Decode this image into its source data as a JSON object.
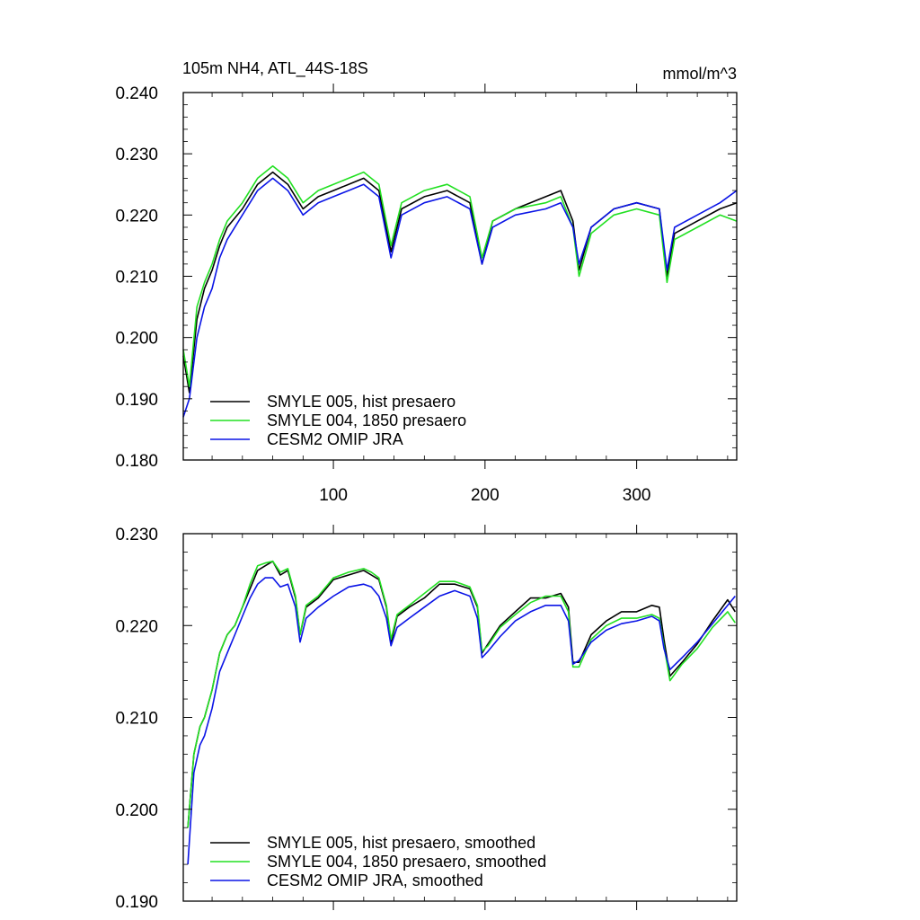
{
  "figure": {
    "title": "105m NH4, ATL_44S-18S",
    "units": "mmol/m^3"
  },
  "colors": {
    "hist": "#000000",
    "pre1850": "#22e022",
    "omip": "#0a14e6"
  },
  "chart_data": [
    {
      "type": "line",
      "name": "raw",
      "title": "105m NH4, ATL_44S-18S",
      "units_label": "mmol/m^3",
      "xlim": [
        1,
        366
      ],
      "ylim": [
        0.18,
        0.24
      ],
      "xticks": [
        100,
        200,
        300
      ],
      "xtick_labels": [
        "100",
        "200",
        "300"
      ],
      "yticks": [
        0.18,
        0.19,
        0.2,
        0.21,
        0.22,
        0.23,
        0.24
      ],
      "ytick_labels": [
        "0.180",
        "0.190",
        "0.200",
        "0.210",
        "0.220",
        "0.230",
        "0.240"
      ],
      "legend": [
        "SMYLE 005, hist presaero",
        "SMYLE 004, 1850 presaero",
        "CESM2 OMIP JRA"
      ],
      "legend_position": "bottom-left",
      "series": [
        {
          "name": "SMYLE 005, hist presaero",
          "color_key": "hist",
          "x": [
            1,
            5,
            10,
            15,
            20,
            25,
            30,
            40,
            50,
            60,
            70,
            80,
            90,
            100,
            110,
            120,
            130,
            138,
            145,
            160,
            175,
            190,
            198,
            205,
            220,
            240,
            250,
            258,
            262,
            270,
            285,
            300,
            315,
            320,
            325,
            340,
            355,
            366
          ],
          "y": [
            0.197,
            0.191,
            0.203,
            0.208,
            0.211,
            0.215,
            0.218,
            0.221,
            0.225,
            0.227,
            0.225,
            0.221,
            0.223,
            0.224,
            0.225,
            0.226,
            0.224,
            0.214,
            0.221,
            0.223,
            0.224,
            0.222,
            0.212,
            0.219,
            0.221,
            0.223,
            0.224,
            0.219,
            0.211,
            0.218,
            0.221,
            0.222,
            0.221,
            0.21,
            0.217,
            0.219,
            0.221,
            0.222
          ]
        },
        {
          "name": "SMYLE 004, 1850 presaero",
          "color_key": "pre1850",
          "x": [
            1,
            5,
            10,
            15,
            20,
            25,
            30,
            40,
            50,
            60,
            70,
            80,
            90,
            100,
            110,
            120,
            130,
            138,
            145,
            160,
            175,
            190,
            198,
            205,
            220,
            240,
            250,
            258,
            262,
            270,
            285,
            300,
            315,
            320,
            325,
            340,
            355,
            366
          ],
          "y": [
            0.198,
            0.192,
            0.205,
            0.209,
            0.212,
            0.216,
            0.219,
            0.222,
            0.226,
            0.228,
            0.226,
            0.222,
            0.224,
            0.225,
            0.226,
            0.227,
            0.225,
            0.215,
            0.222,
            0.224,
            0.225,
            0.223,
            0.213,
            0.219,
            0.221,
            0.222,
            0.223,
            0.218,
            0.21,
            0.217,
            0.22,
            0.221,
            0.22,
            0.209,
            0.216,
            0.218,
            0.22,
            0.219
          ]
        },
        {
          "name": "CESM2 OMIP JRA",
          "color_key": "omip",
          "x": [
            1,
            5,
            10,
            15,
            20,
            25,
            30,
            40,
            50,
            60,
            70,
            80,
            90,
            100,
            110,
            120,
            130,
            138,
            145,
            160,
            175,
            190,
            198,
            205,
            220,
            240,
            250,
            258,
            262,
            270,
            285,
            300,
            315,
            320,
            325,
            340,
            355,
            366
          ],
          "y": [
            0.187,
            0.19,
            0.2,
            0.205,
            0.208,
            0.213,
            0.216,
            0.22,
            0.224,
            0.226,
            0.224,
            0.22,
            0.222,
            0.223,
            0.224,
            0.225,
            0.223,
            0.213,
            0.22,
            0.222,
            0.223,
            0.221,
            0.212,
            0.218,
            0.22,
            0.221,
            0.222,
            0.218,
            0.212,
            0.218,
            0.221,
            0.222,
            0.221,
            0.211,
            0.218,
            0.22,
            0.222,
            0.224
          ]
        }
      ]
    },
    {
      "type": "line",
      "name": "smoothed",
      "xlim": [
        1,
        366
      ],
      "ylim": [
        0.19,
        0.23
      ],
      "xticks": [
        100,
        200,
        300
      ],
      "xtick_labels": [],
      "yticks": [
        0.19,
        0.2,
        0.21,
        0.22,
        0.23
      ],
      "ytick_labels": [
        "0.190",
        "0.200",
        "0.210",
        "0.220",
        "0.230"
      ],
      "legend": [
        "SMYLE 005, hist presaero, smoothed",
        "SMYLE 004, 1850 presaero, smoothed",
        "CESM2 OMIP JRA, smoothed"
      ],
      "legend_position": "bottom-left",
      "series": [
        {
          "name": "SMYLE 005, hist presaero, smoothed",
          "color_key": "hist",
          "x": [
            4,
            8,
            12,
            15,
            20,
            25,
            30,
            35,
            40,
            45,
            50,
            55,
            60,
            65,
            70,
            75,
            78,
            82,
            90,
            100,
            110,
            120,
            125,
            130,
            135,
            138,
            142,
            150,
            160,
            170,
            180,
            190,
            195,
            198,
            202,
            210,
            220,
            230,
            240,
            250,
            255,
            258,
            262,
            270,
            280,
            290,
            300,
            310,
            315,
            318,
            322,
            330,
            340,
            350,
            360,
            365
          ],
          "y": [
            0.198,
            0.206,
            0.209,
            0.21,
            0.213,
            0.217,
            0.219,
            0.22,
            0.222,
            0.224,
            0.226,
            0.2265,
            0.227,
            0.2255,
            0.226,
            0.223,
            0.219,
            0.222,
            0.223,
            0.225,
            0.2255,
            0.226,
            0.2255,
            0.225,
            0.222,
            0.218,
            0.221,
            0.222,
            0.223,
            0.2245,
            0.2245,
            0.224,
            0.222,
            0.217,
            0.218,
            0.22,
            0.2215,
            0.223,
            0.223,
            0.2235,
            0.222,
            0.216,
            0.216,
            0.219,
            0.2205,
            0.2215,
            0.2215,
            0.2222,
            0.222,
            0.2185,
            0.2145,
            0.216,
            0.218,
            0.2205,
            0.2228,
            0.2215
          ]
        },
        {
          "name": "SMYLE 004, 1850 presaero, smoothed",
          "color_key": "pre1850",
          "x": [
            4,
            8,
            12,
            15,
            20,
            25,
            30,
            35,
            40,
            45,
            50,
            55,
            60,
            65,
            70,
            75,
            78,
            82,
            90,
            100,
            110,
            120,
            125,
            130,
            135,
            138,
            142,
            150,
            160,
            170,
            180,
            190,
            195,
            198,
            202,
            210,
            220,
            230,
            240,
            250,
            255,
            258,
            262,
            270,
            280,
            290,
            300,
            310,
            315,
            318,
            322,
            330,
            340,
            350,
            360,
            365
          ],
          "y": [
            0.198,
            0.206,
            0.209,
            0.21,
            0.213,
            0.217,
            0.219,
            0.22,
            0.222,
            0.2245,
            0.2265,
            0.2268,
            0.227,
            0.2258,
            0.2262,
            0.2232,
            0.219,
            0.2222,
            0.2232,
            0.2252,
            0.2258,
            0.2262,
            0.2258,
            0.2252,
            0.2222,
            0.2185,
            0.2212,
            0.2222,
            0.2235,
            0.2248,
            0.2248,
            0.2242,
            0.2222,
            0.2172,
            0.2178,
            0.2198,
            0.2212,
            0.2225,
            0.2232,
            0.2232,
            0.2215,
            0.2155,
            0.2155,
            0.2185,
            0.22,
            0.2208,
            0.2208,
            0.2212,
            0.2208,
            0.2178,
            0.214,
            0.2158,
            0.2175,
            0.2198,
            0.2215,
            0.2203
          ]
        },
        {
          "name": "CESM2 OMIP JRA, smoothed",
          "color_key": "omip",
          "x": [
            4,
            8,
            12,
            15,
            20,
            25,
            30,
            35,
            40,
            45,
            50,
            55,
            60,
            65,
            70,
            75,
            78,
            82,
            90,
            100,
            110,
            120,
            125,
            130,
            135,
            138,
            142,
            150,
            160,
            170,
            180,
            190,
            195,
            198,
            202,
            210,
            220,
            230,
            240,
            250,
            255,
            258,
            262,
            270,
            280,
            290,
            300,
            310,
            315,
            318,
            322,
            330,
            340,
            350,
            360,
            365
          ],
          "y": [
            0.194,
            0.204,
            0.207,
            0.208,
            0.211,
            0.215,
            0.217,
            0.219,
            0.221,
            0.223,
            0.2245,
            0.2252,
            0.2252,
            0.2242,
            0.2245,
            0.222,
            0.2182,
            0.2208,
            0.222,
            0.2232,
            0.2242,
            0.2245,
            0.2242,
            0.2232,
            0.2208,
            0.2178,
            0.2198,
            0.2208,
            0.222,
            0.2232,
            0.2238,
            0.2232,
            0.2208,
            0.2165,
            0.2172,
            0.2188,
            0.2205,
            0.2215,
            0.2222,
            0.2222,
            0.2205,
            0.2158,
            0.2162,
            0.2182,
            0.2195,
            0.2202,
            0.2205,
            0.221,
            0.2205,
            0.2175,
            0.2152,
            0.2165,
            0.2182,
            0.2202,
            0.2222,
            0.2232
          ]
        }
      ]
    }
  ]
}
